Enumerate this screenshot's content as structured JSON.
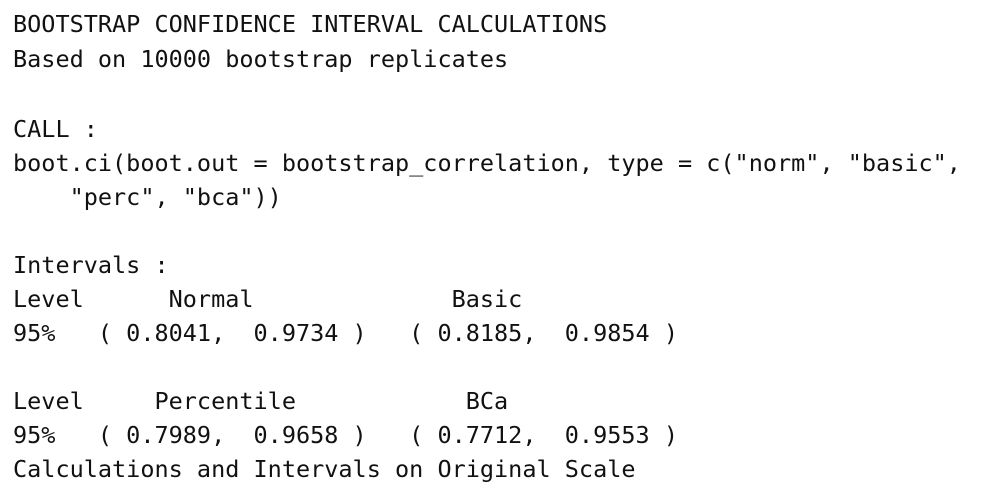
{
  "console": {
    "header": {
      "title": "BOOTSTRAP CONFIDENCE INTERVAL CALCULATIONS",
      "replicates": "Based on 10000 bootstrap replicates"
    },
    "call": {
      "label": "CALL :",
      "line1": "boot.ci(boot.out = bootstrap_correlation, type = c(\"norm\", \"basic\",",
      "line2": "    \"perc\", \"bca\"))"
    },
    "intervals": {
      "label": "Intervals :",
      "table1": {
        "header": "Level      Normal              Basic",
        "row": "95%   ( 0.8041,  0.9734 )   ( 0.8185,  0.9854 )"
      },
      "table2": {
        "header": "Level     Percentile            BCa",
        "row": "95%   ( 0.7989,  0.9658 )   ( 0.7712,  0.9553 )"
      }
    },
    "footer": "Calculations and Intervals on Original Scale"
  }
}
